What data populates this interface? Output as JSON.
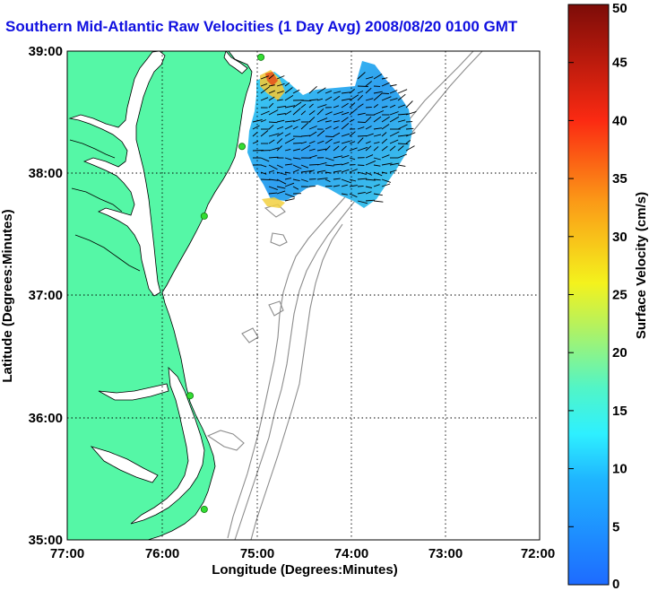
{
  "title": "Southern Mid-Atlantic Raw Velocities (1 Day Avg) 2008/08/20 0100 GMT",
  "axes": {
    "xlabel": "Longitude (Degrees:Minutes)",
    "ylabel": "Latitude (Degrees:Minutes)",
    "xticks": [
      "77:00",
      "76:00",
      "75:00",
      "74:00",
      "73:00",
      "72:00"
    ],
    "yticks": [
      "39:00",
      "38:00",
      "37:00",
      "36:00",
      "35:00"
    ]
  },
  "colorbar": {
    "label": "Surface Velocity (cm/s)",
    "ticks": [
      "50",
      "45",
      "40",
      "35",
      "30",
      "25",
      "20",
      "15",
      "10",
      "5",
      "0"
    ],
    "min": 0,
    "max": 50
  },
  "colors": {
    "land": "#55f7a6",
    "title": "#1010e0",
    "bathymetry": "#8c8c8c",
    "station": "#33dd33"
  },
  "stations": [
    {
      "lon": -74.95,
      "lat": 38.95
    },
    {
      "lon": -75.15,
      "lat": 38.22
    },
    {
      "lon": -75.55,
      "lat": 37.65
    },
    {
      "lon": -75.7,
      "lat": 36.18
    },
    {
      "lon": -75.55,
      "lat": 35.25
    }
  ]
}
